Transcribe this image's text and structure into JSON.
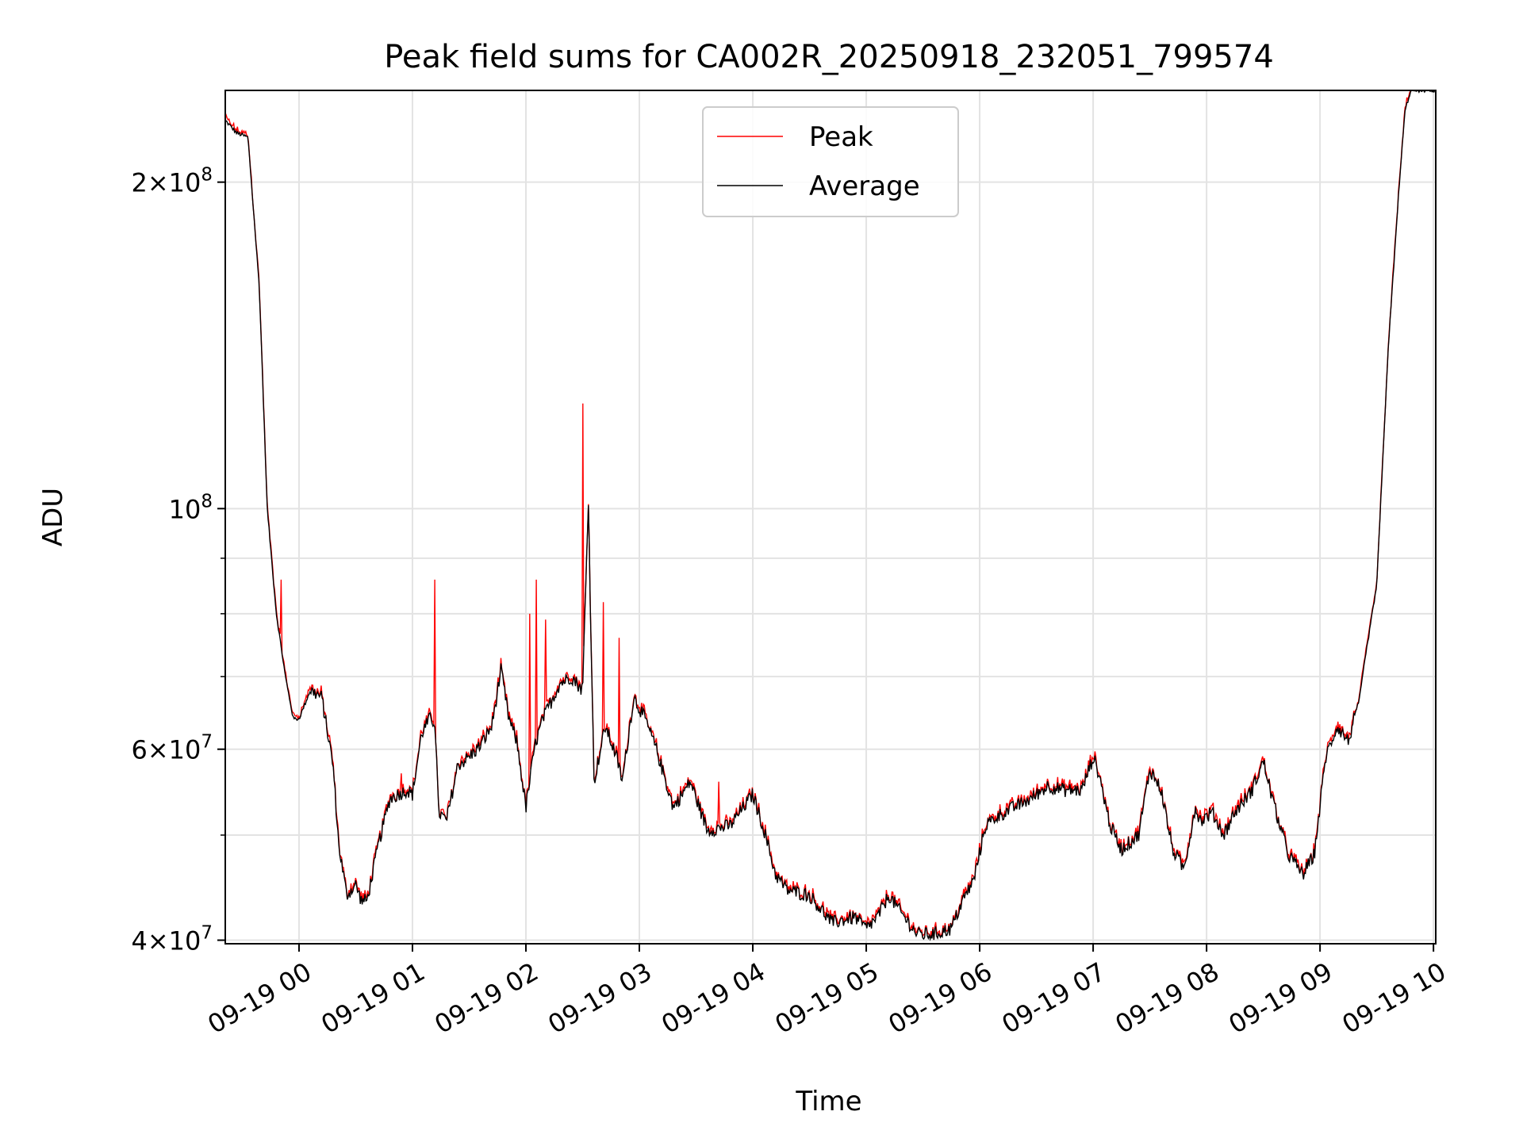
{
  "chart_data": {
    "type": "line",
    "title": "Peak field sums for CA002R_20250918_232051_799574",
    "xlabel": "Time",
    "ylabel": "ADU",
    "yscale": "log",
    "xlim_hours": [
      -0.65,
      10.02
    ],
    "ylim": [
      39700000,
      243000000
    ],
    "grid": true,
    "legend_position": "upper center",
    "x_tick_labels": [
      "09-19 00",
      "09-19 01",
      "09-19 02",
      "09-19 03",
      "09-19 04",
      "09-19 05",
      "09-19 06",
      "09-19 07",
      "09-19 08",
      "09-19 09",
      "09-19 10"
    ],
    "x_tick_hours": [
      0,
      1,
      2,
      3,
      4,
      5,
      6,
      7,
      8,
      9,
      10
    ],
    "y_major_ticks": [
      {
        "value": 40000000,
        "mantissa": "4",
        "exponent": "7"
      },
      {
        "value": 60000000,
        "mantissa": "6",
        "exponent": "7"
      },
      {
        "value": 100000000,
        "mantissa": "",
        "exponent": "8"
      },
      {
        "value": 200000000,
        "mantissa": "2",
        "exponent": "8"
      }
    ],
    "y_minor_ticks": [
      50000000,
      70000000,
      80000000,
      90000000
    ],
    "series": [
      {
        "name": "Peak",
        "color": "#ff0000"
      },
      {
        "name": "Average",
        "color": "#000000"
      }
    ],
    "average_hours": [
      -0.65,
      -0.55,
      -0.45,
      -0.35,
      -0.28,
      -0.2,
      -0.12,
      -0.05,
      0.0,
      0.1,
      0.2,
      0.3,
      0.35,
      0.42,
      0.5,
      0.55,
      0.6,
      0.7,
      0.8,
      0.95,
      1.0,
      1.08,
      1.15,
      1.2,
      1.23,
      1.3,
      1.4,
      1.5,
      1.6,
      1.7,
      1.78,
      1.85,
      1.92,
      2.0,
      2.08,
      2.15,
      2.3,
      2.4,
      2.5,
      2.55,
      2.6,
      2.7,
      2.8,
      2.85,
      2.95,
      3.05,
      3.15,
      3.3,
      3.45,
      3.6,
      3.8,
      4.0,
      4.1,
      4.2,
      4.3,
      4.5,
      4.7,
      4.9,
      5.0,
      5.1,
      5.2,
      5.3,
      5.45,
      5.6,
      5.75,
      5.85,
      5.95,
      6.05,
      6.15,
      6.3,
      6.45,
      6.6,
      6.75,
      6.9,
      7.0,
      7.05,
      7.15,
      7.25,
      7.4,
      7.5,
      7.6,
      7.7,
      7.8,
      7.9,
      7.95,
      8.05,
      8.15,
      8.25,
      8.4,
      8.5,
      8.6,
      8.72,
      8.85,
      8.95,
      9.05,
      9.15,
      9.25,
      9.35,
      9.4,
      9.5,
      9.6,
      9.7,
      9.75,
      9.8,
      9.9,
      10.02
    ],
    "average_values": [
      228000000,
      222000000,
      220000000,
      160000000,
      100000000,
      80000000,
      70000000,
      64000000,
      64000000,
      68000000,
      67000000,
      58000000,
      49000000,
      44000000,
      45000000,
      43500000,
      43500000,
      49000000,
      54000000,
      55000000,
      54500000,
      62000000,
      64000000,
      63500000,
      52500000,
      51500000,
      58000000,
      59000000,
      60500000,
      63000000,
      71000000,
      64000000,
      61000000,
      53000000,
      60500000,
      64000000,
      69000000,
      70000000,
      68000000,
      102000000,
      56000000,
      63000000,
      59000000,
      56000000,
      67000000,
      64000000,
      60000000,
      53000000,
      56000000,
      50500000,
      51000000,
      54500000,
      50500000,
      46000000,
      44500000,
      44000000,
      41500000,
      42000000,
      41000000,
      42000000,
      44000000,
      42500000,
      40500000,
      40500000,
      41000000,
      43500000,
      45500000,
      51000000,
      52000000,
      53000000,
      54000000,
      55500000,
      55000000,
      55000000,
      59000000,
      57000000,
      51000000,
      48500000,
      50000000,
      57500000,
      55000000,
      48500000,
      46500000,
      53000000,
      51500000,
      52500000,
      50000000,
      52500000,
      55000000,
      58500000,
      53000000,
      48000000,
      46000000,
      48000000,
      59000000,
      63000000,
      61000000,
      67000000,
      73000000,
      85000000,
      140000000,
      200000000,
      233000000,
      243000000,
      243000000,
      243000000
    ],
    "peak_spikes_hours": [
      1.2,
      2.03,
      2.09,
      2.17,
      2.5,
      2.68,
      2.82,
      -0.16,
      0.9,
      3.7
    ],
    "peak_spikes_values": [
      86000000,
      80000000,
      86000000,
      79000000,
      125000000,
      82000000,
      76000000,
      86000000,
      57000000,
      56000000
    ]
  }
}
